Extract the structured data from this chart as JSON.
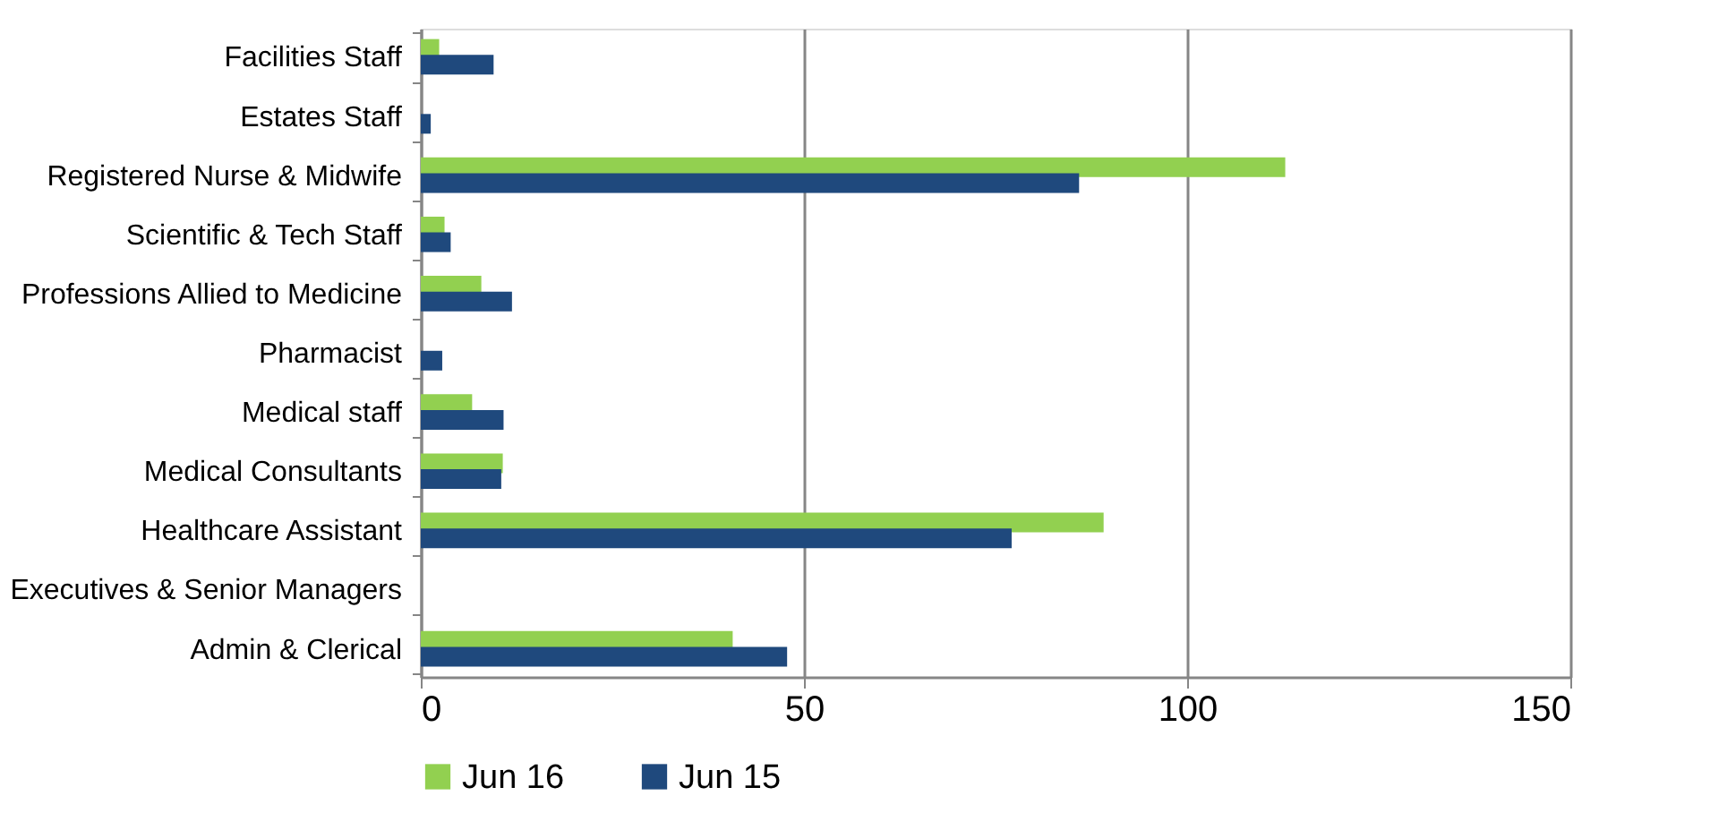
{
  "chart_data": {
    "type": "bar",
    "orientation": "horizontal",
    "categories": [
      "Facilities Staff",
      "Estates Staff",
      "Registered Nurse & Midwife",
      "Scientific & Tech Staff",
      "Professions Allied to Medicine",
      "Pharmacist",
      "Medical staff",
      "Medical Consultants",
      "Healthcare Assistant",
      "Executives & Senior Managers",
      "Admin & Clerical"
    ],
    "series": [
      {
        "name": "Jun 16",
        "color": "#92d050",
        "values": [
          2.4,
          null,
          112.8,
          3.1,
          7.9,
          null,
          6.7,
          10.7,
          89.1,
          null,
          40.7
        ]
      },
      {
        "name": "Jun 15",
        "color": "#1f497d",
        "values": [
          9.5,
          1.3,
          85.9,
          3.9,
          11.9,
          2.8,
          10.8,
          10.5,
          77.1,
          null,
          47.8
        ]
      }
    ],
    "xlim": [
      0,
      150
    ],
    "xticks": [
      0,
      50,
      100,
      150
    ],
    "grid": "x",
    "legend": "bottom"
  }
}
